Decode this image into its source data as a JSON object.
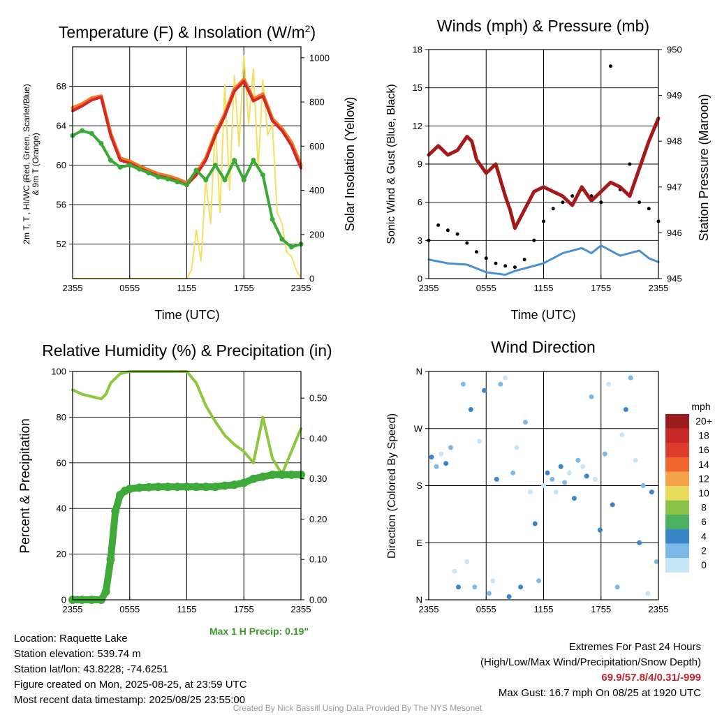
{
  "chart_data": [
    {
      "type": "line",
      "title": "Temperature (F) & Insolation (W/m²)",
      "xlabel": "Time (UTC)",
      "ylabel": "2m T, T_d, HI/WC (Red, Green, Scarlet/Blue) & 9m T (Orange)",
      "ylabel2": "Solar Insolation (Yellow)",
      "x_ticks": [
        "2355",
        "0555",
        "1155",
        "1755",
        "2355"
      ],
      "ylim": [
        48.5,
        72
      ],
      "y_ticks": [
        52,
        56,
        60,
        64,
        68
      ],
      "ylim2": [
        0,
        1050
      ],
      "y2_ticks": [
        0,
        200,
        400,
        600,
        800,
        1000
      ],
      "grid": true,
      "series": [
        {
          "name": "2m T",
          "color": "#d42a27",
          "x": [
            0,
            1,
            2,
            3,
            4,
            5,
            6,
            7,
            8,
            9,
            10,
            11,
            12,
            13,
            14,
            15,
            16,
            17,
            18,
            19,
            20,
            21,
            22,
            23,
            24
          ],
          "values": [
            65.5,
            66,
            66.6,
            66.9,
            63,
            60.5,
            60.2,
            59.7,
            59.3,
            58.9,
            58.7,
            58.4,
            58,
            59,
            60.5,
            63,
            65,
            67.5,
            68.5,
            66.5,
            67,
            64.5,
            63.5,
            62,
            59.7
          ]
        },
        {
          "name": "9m T",
          "color": "#f07a26",
          "x": [
            0,
            1,
            2,
            3,
            4,
            5,
            6,
            7,
            8,
            9,
            10,
            11,
            12,
            13,
            14,
            15,
            16,
            17,
            18,
            19,
            20,
            21,
            22,
            23,
            24
          ],
          "values": [
            65.8,
            66.2,
            66.8,
            67,
            63.2,
            60.7,
            60.4,
            59.9,
            59.5,
            59.1,
            58.9,
            58.6,
            58.2,
            59.2,
            60.7,
            63.2,
            65.2,
            67.7,
            68.7,
            66.7,
            67.2,
            64.7,
            63.7,
            62.3,
            60
          ]
        },
        {
          "name": "T_d",
          "color": "#3aaa35",
          "x": [
            0,
            1,
            2,
            3,
            4,
            5,
            6,
            7,
            8,
            9,
            10,
            11,
            12,
            13,
            14,
            15,
            16,
            17,
            18,
            19,
            20,
            21,
            22,
            23,
            24
          ],
          "values": [
            63,
            63.5,
            63.2,
            62.2,
            60.5,
            59.8,
            60,
            59.6,
            59.2,
            58.8,
            58.6,
            58.3,
            58,
            59.5,
            58.5,
            60,
            58.5,
            60.5,
            58.5,
            60.5,
            59,
            54.5,
            52.5,
            51.7,
            52
          ]
        },
        {
          "name": "Solar Insolation",
          "color": "#f2e060",
          "axis": "y2",
          "x": [
            0,
            12,
            12.5,
            13,
            13.5,
            14,
            14.5,
            15,
            15.5,
            16,
            16.5,
            17,
            17.5,
            18,
            18.5,
            19,
            19.5,
            20,
            20.5,
            21,
            21.5,
            22,
            22.5,
            23,
            23.5,
            24
          ],
          "values": [
            0,
            0,
            40,
            220,
            80,
            450,
            250,
            700,
            300,
            880,
            400,
            920,
            600,
            1010,
            700,
            950,
            500,
            900,
            650,
            700,
            300,
            250,
            120,
            100,
            40,
            0
          ]
        }
      ]
    },
    {
      "type": "line",
      "title": "Winds (mph) & Pressure (mb)",
      "xlabel": "Time (UTC)",
      "ylabel": "Sonic Wind & Gust (Blue, Black)",
      "ylabel2": "Station Pressure (Maroon)",
      "x_ticks": [
        "2355",
        "0555",
        "1155",
        "1755",
        "2355"
      ],
      "ylim": [
        0,
        18
      ],
      "y_ticks": [
        0,
        3,
        6,
        9,
        12,
        15,
        18
      ],
      "ylim2": [
        945,
        950
      ],
      "y2_ticks": [
        945,
        946,
        947,
        948,
        949,
        950
      ],
      "grid": true,
      "series": [
        {
          "name": "Sonic Wind",
          "color": "#4a90d0",
          "x": [
            0,
            2,
            4,
            5,
            6,
            7,
            8,
            9,
            10,
            11,
            12,
            13,
            14,
            15,
            16,
            17,
            18,
            19,
            20,
            21,
            22,
            23,
            24
          ],
          "values": [
            1.5,
            1.2,
            1.1,
            0.8,
            0.5,
            0.4,
            0.3,
            0.6,
            0.8,
            1,
            1.2,
            1.6,
            2,
            2.2,
            2.4,
            2,
            2.6,
            2.2,
            1.8,
            2,
            2.2,
            1.6,
            1.3
          ]
        },
        {
          "name": "Gust",
          "color": "#000000",
          "x": [
            0,
            1,
            2,
            3,
            4,
            5,
            6,
            7,
            8,
            9,
            10,
            11,
            12,
            13,
            14,
            15,
            16,
            17,
            18,
            19,
            20,
            21,
            22,
            23,
            24
          ],
          "values": [
            3,
            4.2,
            3.8,
            3.5,
            2.8,
            2.1,
            1.6,
            1.2,
            1,
            0.9,
            1.5,
            3,
            4.5,
            5.5,
            6,
            6.5,
            7,
            6.5,
            6,
            16.7,
            7,
            9,
            6,
            5.5,
            4.5
          ]
        },
        {
          "name": "Station Pressure",
          "color": "#a31a1a",
          "axis": "y2",
          "x": [
            0,
            1,
            2,
            3,
            4,
            4.5,
            5,
            6,
            7,
            8,
            8.5,
            9,
            10,
            11,
            12,
            13,
            14,
            15,
            16,
            17,
            18,
            19,
            20,
            21,
            22,
            23,
            24
          ],
          "values": [
            947.7,
            947.9,
            947.7,
            947.8,
            948.1,
            948,
            947.6,
            947.3,
            947.5,
            946.8,
            946.5,
            946.1,
            946.5,
            946.9,
            947,
            946.9,
            946.8,
            946.6,
            947,
            946.7,
            946.9,
            947.1,
            947,
            946.8,
            947.4,
            948,
            948.5
          ]
        }
      ]
    },
    {
      "type": "line",
      "title": "Relative Humidity (%) & Precipitation (in)",
      "ylabel": "Percent & Precipitation",
      "x_ticks": [
        "2355",
        "0555",
        "1155",
        "1755",
        "2355"
      ],
      "ylim": [
        0,
        100
      ],
      "y_ticks": [
        0,
        20,
        40,
        60,
        80,
        100
      ],
      "ylim2": [
        0,
        0.566
      ],
      "y2_ticks": [
        "0.00",
        "0.10",
        "0.20",
        "0.30",
        "0.40",
        "0.50"
      ],
      "grid": true,
      "series": [
        {
          "name": "Relative Humidity",
          "color": "#8dc63f",
          "x": [
            0,
            1,
            2,
            3,
            3.5,
            4,
            5,
            6,
            7,
            8,
            9,
            10,
            11,
            12,
            13,
            14,
            15,
            16,
            17,
            18,
            19,
            20,
            21,
            22,
            23,
            24
          ],
          "values": [
            92,
            90,
            89,
            88,
            90,
            95,
            99,
            100,
            100,
            100,
            100,
            100,
            100,
            100,
            95,
            85,
            78,
            72,
            68,
            65,
            60,
            80,
            62,
            55,
            65,
            75
          ]
        },
        {
          "name": "Precipitation",
          "color": "#3faa3a",
          "axis": "y2",
          "x": [
            0,
            1,
            2,
            3,
            3.5,
            4,
            4.5,
            5,
            5.5,
            6,
            7,
            8,
            9,
            10,
            11,
            12,
            13,
            14,
            15,
            16,
            17,
            18,
            19,
            20,
            21,
            22,
            23,
            24
          ],
          "values": [
            0,
            0,
            0,
            0,
            0.02,
            0.1,
            0.22,
            0.26,
            0.27,
            0.275,
            0.278,
            0.279,
            0.28,
            0.28,
            0.28,
            0.28,
            0.28,
            0.28,
            0.28,
            0.283,
            0.285,
            0.29,
            0.3,
            0.305,
            0.31,
            0.31,
            0.31,
            0.31
          ]
        }
      ]
    },
    {
      "type": "scatter",
      "title": "Wind Direction",
      "ylabel": "Direction (Colored By Speed)",
      "x_ticks": [
        "2355",
        "0555",
        "1155",
        "1755",
        "2355"
      ],
      "y_ticks": [
        "N",
        "E",
        "S",
        "W",
        "N"
      ],
      "ylim": [
        0,
        360
      ],
      "grid": true,
      "legend": {
        "title": "mph",
        "labels": [
          "20+",
          "18",
          "16",
          "14",
          "12",
          "10",
          "8",
          "6",
          "4",
          "2",
          "0"
        ],
        "colors": [
          "#9a1c1f",
          "#c62828",
          "#dd3c2c",
          "#ef6530",
          "#f6a24a",
          "#e9dc5c",
          "#8bc34a",
          "#4caf62",
          "#3a86c8",
          "#7db9e8",
          "#c6e6f8"
        ]
      },
      "series": [
        {
          "name": "Wind Direction",
          "x": [
            0.3,
            0.8,
            1.3,
            1.8,
            2.3,
            2.7,
            3.1,
            3.6,
            4.0,
            4.4,
            4.8,
            5.3,
            5.8,
            6.3,
            6.7,
            7.1,
            7.5,
            8.0,
            8.4,
            8.8,
            9.2,
            9.6,
            10.1,
            10.6,
            11.1,
            11.5,
            12.0,
            12.4,
            12.9,
            13.3,
            13.8,
            14.2,
            14.7,
            15.2,
            15.6,
            16.1,
            16.5,
            17.0,
            17.4,
            17.9,
            18.4,
            18.8,
            19.2,
            19.7,
            20.2,
            20.6,
            21.1,
            21.6,
            22.0,
            22.4,
            22.9,
            23.3,
            23.8
          ],
          "values": [
            225,
            210,
            230,
            215,
            240,
            45,
            20,
            340,
            60,
            300,
            20,
            250,
            330,
            10,
            30,
            190,
            340,
            350,
            5,
            200,
            240,
            20,
            280,
            170,
            120,
            30,
            180,
            200,
            190,
            170,
            210,
            185,
            200,
            160,
            220,
            210,
            195,
            320,
            190,
            110,
            230,
            340,
            150,
            20,
            260,
            300,
            350,
            220,
            90,
            180,
            10,
            170,
            60
          ]
        }
      ]
    }
  ],
  "labels": {
    "temp_title": "Temperature (F) & Insolation (W/m",
    "temp_title_sup": "2",
    "temp_title_end": ")",
    "temp_ylabel_line1": "2m T, T , HI/WC (Red, Green, Scarlet/Blue)",
    "temp_ylabel_sub": "d",
    "temp_ylabel_line2": "& 9m T (Orange)",
    "temp_ylabel_right": "Solar Insolation (Yellow)",
    "time_label": "Time (UTC)",
    "wind_title": "Winds (mph) & Pressure (mb)",
    "wind_ylabel": "Sonic Wind & Gust (Blue, Black)",
    "wind_ylabel_right": "Station Pressure (Maroon)",
    "rh_title": "Relative Humidity (%) & Precipitation (in)",
    "rh_ylabel": "Percent & Precipitation",
    "dir_title": "Wind Direction",
    "dir_ylabel": "Direction (Colored By Speed)"
  },
  "max_precip": "Max 1 H Precip: 0.19\"",
  "station": {
    "location": "Location: Raquette Lake",
    "elevation": "Station elevation: 539.74 m",
    "latlon": "Station lat/lon: 43.8228; -74.6251",
    "created": "Figure created on Mon, 2025-08-25, at 23:59 UTC",
    "recent": "Most recent data timestamp: 2025/08/25 23:55:00"
  },
  "extremes": {
    "header": "Extremes For Past 24 Hours",
    "subheader": "(High/Low/Max Wind/Precipitation/Snow Depth)",
    "values": "69.9/57.8/4/0.31/-999",
    "max_gust": "Max Gust: 16.7 mph On 08/25 at 1920 UTC"
  },
  "credit": "Created By Nick Bassill Using Data Provided By The NYS Mesonet"
}
